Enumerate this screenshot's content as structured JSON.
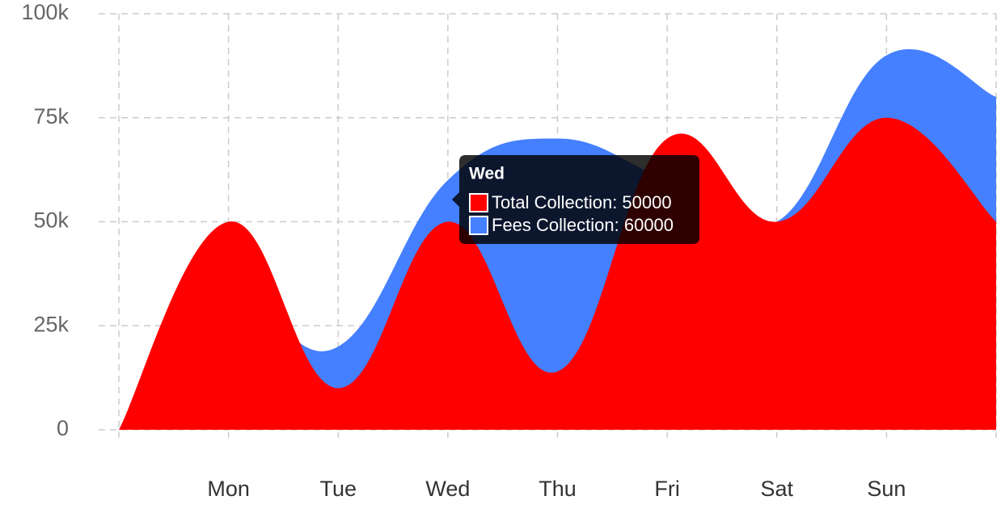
{
  "chart_data": {
    "type": "area",
    "categories": [
      null,
      "Mon",
      "Tue",
      "Wed",
      "Thu",
      "Fri",
      "Sat",
      "Sun",
      null
    ],
    "series": [
      {
        "name": "Fees Collection",
        "color": "#4480ff",
        "values": [
          0,
          30000,
          20000,
          60000,
          70000,
          60000,
          50000,
          90000,
          80000
        ]
      },
      {
        "name": "Total Collection",
        "color": "#ff0000",
        "values": [
          0,
          50000,
          10000,
          50000,
          14000,
          70000,
          50000,
          75000,
          50000
        ]
      }
    ],
    "ylim": [
      0,
      100000
    ],
    "yticks": [
      {
        "value": 0,
        "label": "0"
      },
      {
        "value": 25000,
        "label": "25k"
      },
      {
        "value": 50000,
        "label": "50k"
      },
      {
        "value": 75000,
        "label": "75k"
      },
      {
        "value": 100000,
        "label": "100k"
      }
    ],
    "grid": true,
    "tooltip": {
      "title": "Wed",
      "lines": [
        "Total Collection: 50000",
        "Fees Collection: 60000"
      ]
    }
  }
}
